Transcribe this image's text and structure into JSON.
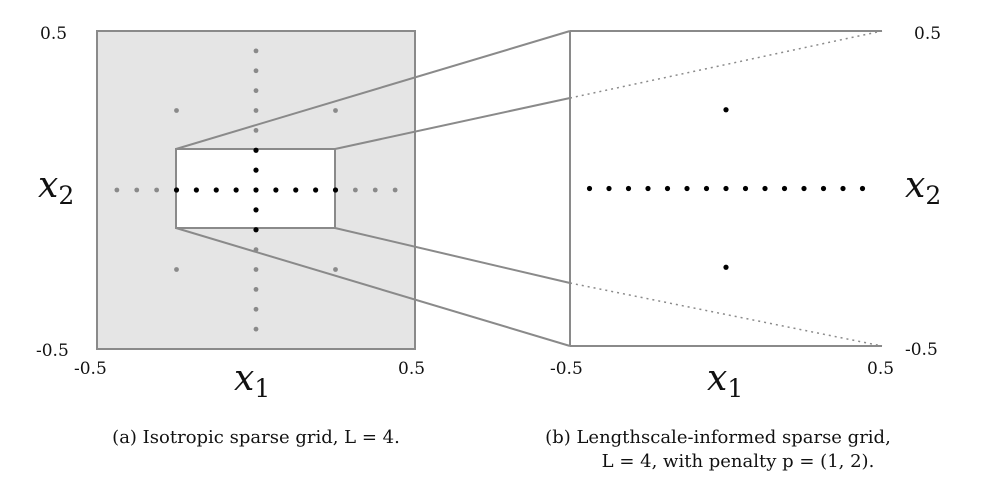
{
  "colors": {
    "panel_bg": "#e5e5e5",
    "frame": "#8a8a8a",
    "grid_point": "#8a8a8a",
    "highlight_point": "#000000",
    "zoom_bg": "#ffffff",
    "text": "#111111"
  },
  "panel_a": {
    "tick_ymax": "0.5",
    "tick_ymin": "-0.5",
    "tick_xmin": "-0.5",
    "tick_xmax": "0.5",
    "xlabel": "x",
    "xlabel_sub": "1",
    "ylabel": "x",
    "ylabel_sub": "2",
    "caption": "(a) Isotropic sparse grid, L = 4.",
    "level": 4,
    "domain": [
      -0.5,
      0.5
    ],
    "highlight_box": {
      "x": [
        -0.25,
        0.25
      ],
      "y": [
        -0.125,
        0.125
      ]
    }
  },
  "panel_b": {
    "tick_ymax": "0.5",
    "tick_ymin": "-0.5",
    "tick_xmin": "-0.5",
    "tick_xmax": "0.5",
    "xlabel": "x",
    "xlabel_sub": "1",
    "ylabel": "x",
    "ylabel_sub": "2",
    "caption_line1": "(b) Lengthscale-informed sparse grid,",
    "caption_line2": "L = 4, with penalty p = (1, 2).",
    "level": 4,
    "penalty": [
      1,
      2
    ],
    "domain": [
      -0.5,
      0.5
    ]
  }
}
